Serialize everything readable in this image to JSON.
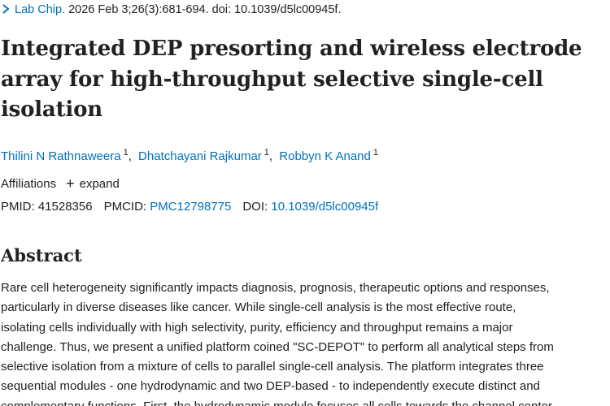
{
  "citation": {
    "journal": "Lab Chip.",
    "details": "2026 Feb 3;26(3):681-694. doi: 10.1039/d5lc00945f."
  },
  "article": {
    "title": "Integrated DEP presorting and wireless electrode array for high-throughput selective single-cell isolation"
  },
  "authors": [
    {
      "name": "Thilini N Rathnaweera",
      "affiliation": "1"
    },
    {
      "name": "Dhatchayani Rajkumar",
      "affiliation": "1"
    },
    {
      "name": "Robbyn K Anand",
      "affiliation": "1"
    }
  ],
  "affiliations": {
    "label": "Affiliations",
    "expand_label": "expand"
  },
  "identifiers": {
    "pmid_label": "PMID:",
    "pmid_value": "41528356",
    "pmcid_label": "PMCID:",
    "pmcid_value": "PMC12798775",
    "doi_label": "DOI:",
    "doi_value": "10.1039/d5lc00945f"
  },
  "abstract": {
    "heading": "Abstract",
    "lines": [
      "Rare cell heterogeneity significantly impacts diagnosis, prognosis, therapeutic options and responses,",
      "particularly in diverse diseases like cancer. While single-cell analysis is the most effective route,",
      "isolating cells individually with high selectivity, purity, efficiency and throughput remains a major",
      "challenge. Thus, we present a unified platform coined \"SC-DEPOT\" to perform all analytical steps from",
      "selective isolation from a mixture of cells to parallel single-cell analysis. The platform integrates three",
      "sequential modules - one hydrodynamic and two DEP-based - to independently execute distinct and",
      "complementary functions. First, the hydrodynamic module focuses all cells towards the channel center"
    ]
  },
  "colors": {
    "link": "#0071bc",
    "text": "#212121",
    "background": "#ffffff"
  }
}
